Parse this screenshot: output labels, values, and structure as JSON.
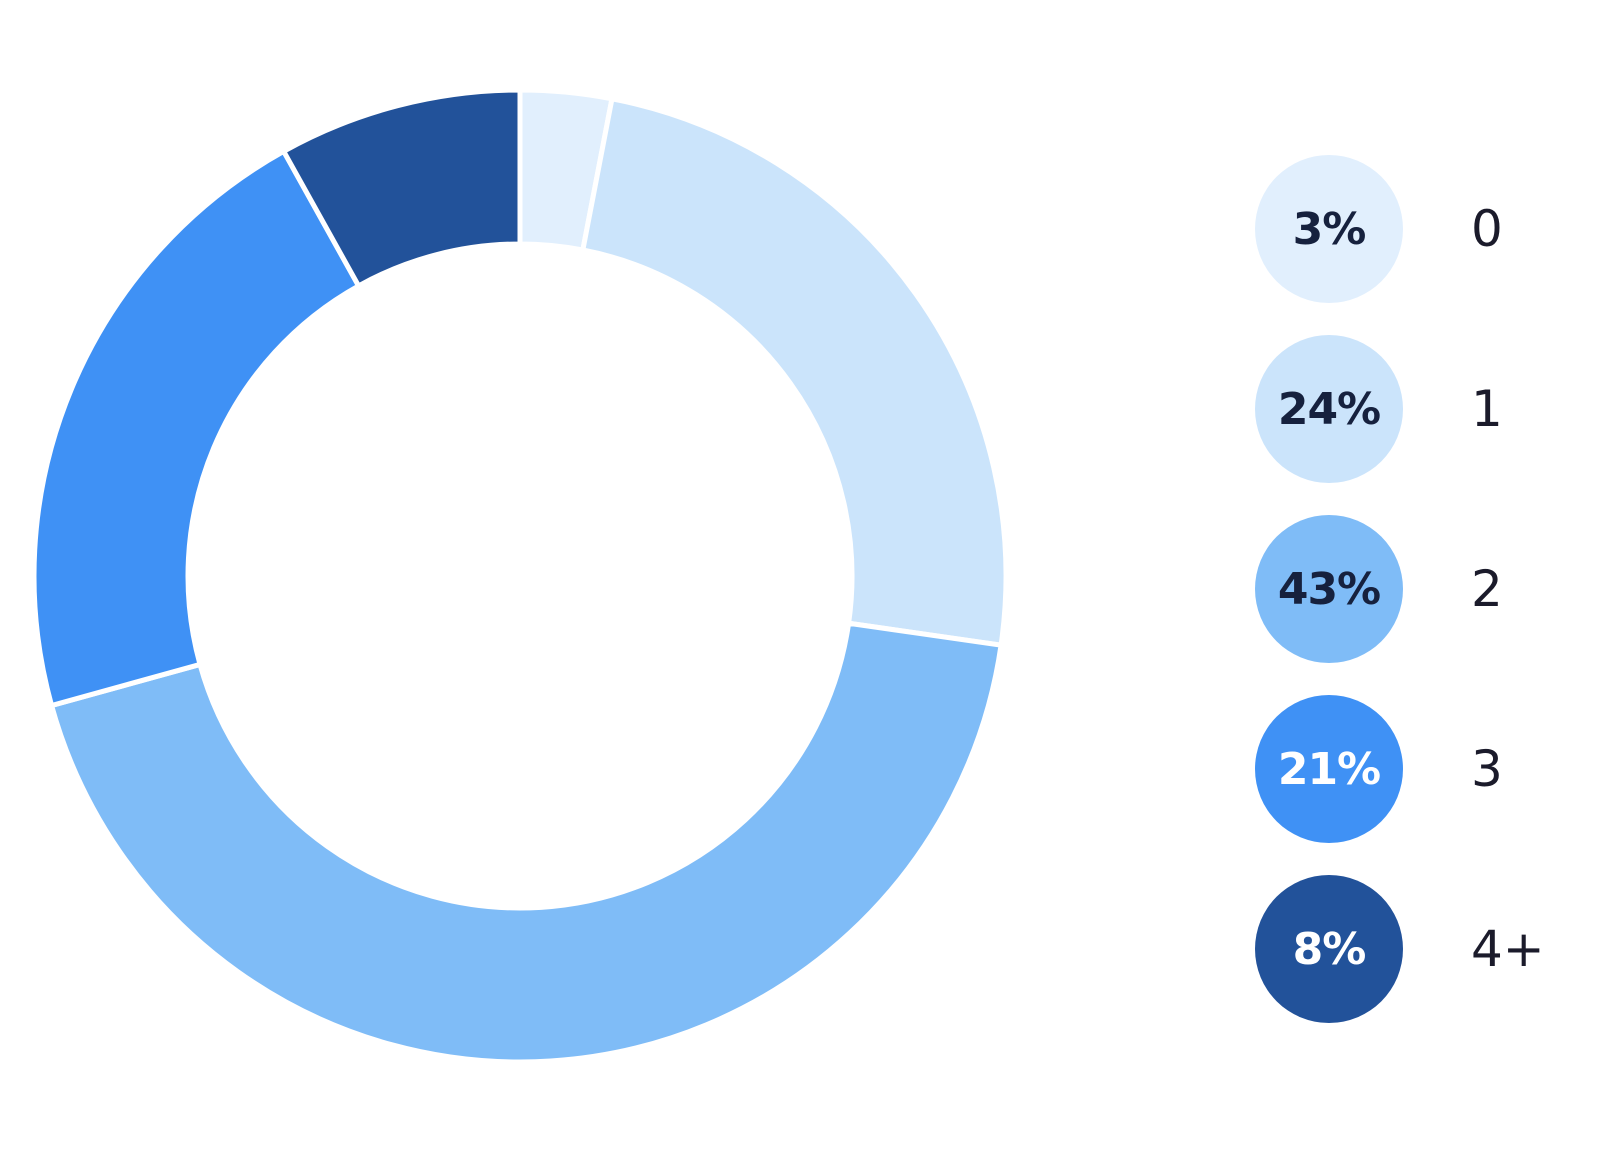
{
  "chart_data": {
    "type": "pie",
    "variant": "donut",
    "title": "",
    "categories": [
      "0",
      "1",
      "2",
      "3",
      "4+"
    ],
    "values": [
      3,
      24,
      43,
      21,
      8
    ],
    "value_labels": [
      "3%",
      "24%",
      "43%",
      "21%",
      "8%"
    ],
    "colors": [
      "#e1effd",
      "#cbe4fb",
      "#7fbcf7",
      "#3f91f5",
      "#22529a"
    ],
    "label_text_colors": [
      "#16213e",
      "#16213e",
      "#16213e",
      "#ffffff",
      "#ffffff"
    ],
    "start_angle": "top",
    "direction": "clockwise",
    "legend_position": "right"
  }
}
